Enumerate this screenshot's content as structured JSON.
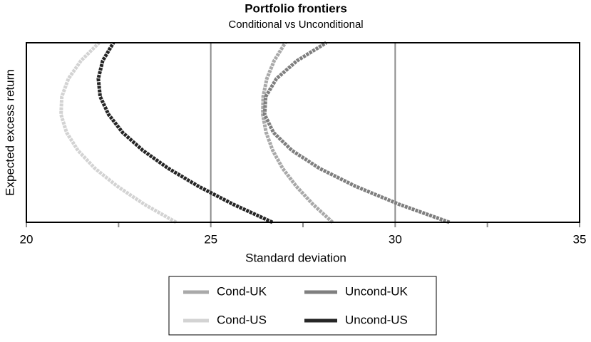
{
  "chart_data": {
    "type": "line",
    "title": "Portfolio frontiers",
    "subtitle": "Conditional vs Unconditional",
    "x_label": "Standard deviation",
    "y_label": "Expected excess return",
    "xlim": [
      20,
      35
    ],
    "xticks": [
      20,
      25,
      30,
      35
    ],
    "xminorticks": [
      22.5,
      27.5,
      32.5
    ],
    "ylim": [
      0,
      10
    ],
    "grid": true,
    "series": [
      {
        "name": "Cond-UK",
        "color": "#a9a9a9",
        "x": [
          28.3,
          27.77,
          27.32,
          26.95,
          26.68,
          26.5,
          26.41,
          26.42,
          26.52,
          26.72,
          27.02
        ],
        "values": [
          0,
          1,
          2,
          3,
          4,
          5,
          6,
          7,
          8,
          9,
          10
        ]
      },
      {
        "name": "Uncond-UK",
        "color": "#7f7f7f",
        "x": [
          31.47,
          30.11,
          28.93,
          27.95,
          27.2,
          26.7,
          26.46,
          26.49,
          26.78,
          27.34,
          28.13
        ],
        "values": [
          0,
          1,
          2,
          3,
          4,
          5,
          6,
          7,
          8,
          9,
          10
        ]
      },
      {
        "name": "Cond-US",
        "color": "#d3d3d3",
        "x": [
          24.06,
          23.2,
          22.47,
          21.86,
          21.4,
          21.09,
          20.94,
          20.96,
          21.14,
          21.48,
          21.97
        ],
        "values": [
          0,
          1,
          2,
          3,
          4,
          5,
          6,
          7,
          8,
          9,
          10
        ]
      },
      {
        "name": "Uncond-US",
        "color": "#262626",
        "x": [
          26.67,
          25.61,
          24.67,
          23.85,
          23.16,
          22.61,
          22.23,
          22.0,
          21.95,
          22.07,
          22.36
        ],
        "values": [
          0,
          1,
          2,
          3,
          4,
          5,
          6,
          7,
          8,
          9,
          10
        ]
      }
    ]
  }
}
